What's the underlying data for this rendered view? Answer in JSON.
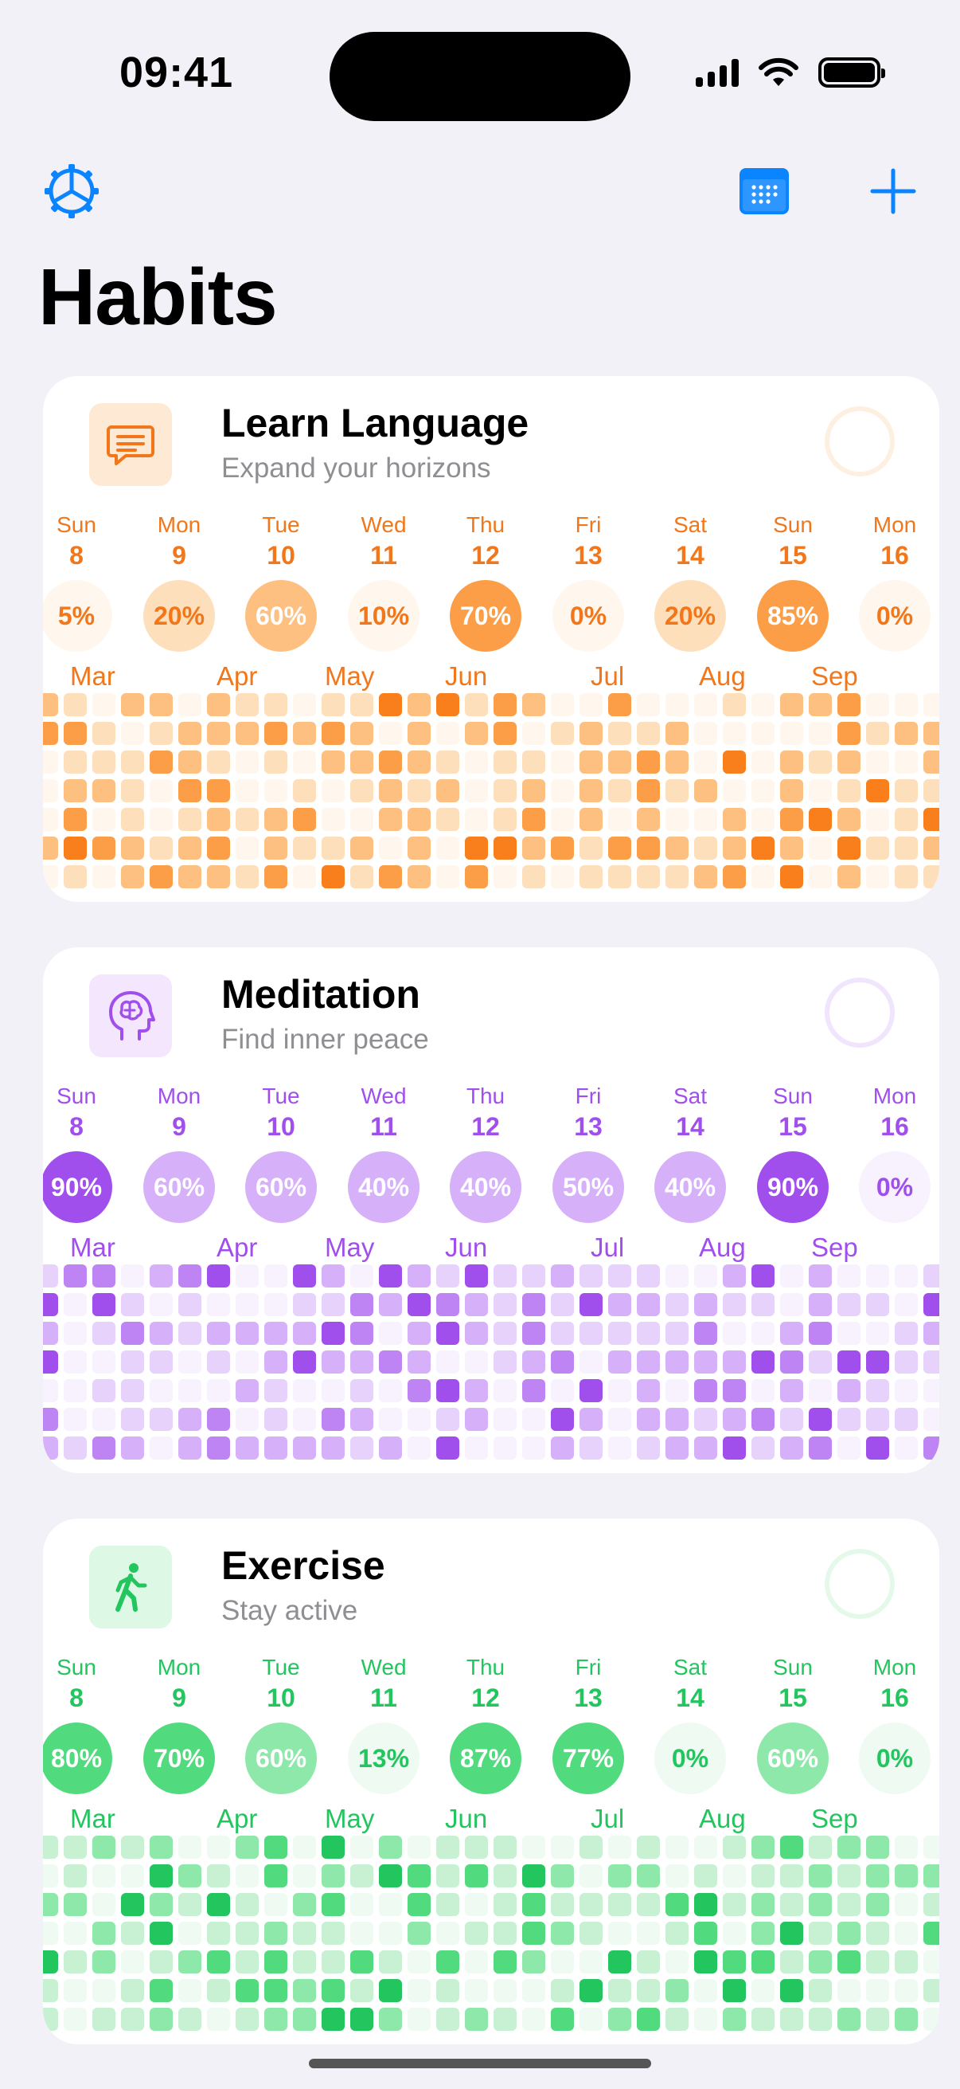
{
  "status_bar": {
    "time": "09:41"
  },
  "nav": {
    "settings_icon": "gear-icon",
    "calendar_icon": "calendar-icon",
    "add_icon": "plus-icon"
  },
  "page_title": "Habits",
  "habits": [
    {
      "id": "language",
      "title": "Learn Language",
      "subtitle": "Expand your horizons",
      "icon": "speech-bubble-icon",
      "palette": [
        "#FFF7EE",
        "#FEDFBC",
        "#FDC080",
        "#FB9E47",
        "#F97E1C"
      ],
      "days": [
        {
          "name": "Sun",
          "num": "8",
          "pct": "5%",
          "level": 0
        },
        {
          "name": "Mon",
          "num": "9",
          "pct": "20%",
          "level": 1
        },
        {
          "name": "Tue",
          "num": "10",
          "pct": "60%",
          "level": 2
        },
        {
          "name": "Wed",
          "num": "11",
          "pct": "10%",
          "level": 0
        },
        {
          "name": "Thu",
          "num": "12",
          "pct": "70%",
          "level": 3
        },
        {
          "name": "Fri",
          "num": "13",
          "pct": "0%",
          "level": 0
        },
        {
          "name": "Sat",
          "num": "14",
          "pct": "20%",
          "level": 1
        },
        {
          "name": "Sun",
          "num": "15",
          "pct": "85%",
          "level": 3
        },
        {
          "name": "Mon",
          "num": "16",
          "pct": "0%",
          "level": 0
        }
      ],
      "months": [
        "Mar",
        "Apr",
        "May",
        "Jun",
        "Jul",
        "Aug",
        "Sep"
      ],
      "seed": 11
    },
    {
      "id": "meditation",
      "title": "Meditation",
      "subtitle": "Find inner peace",
      "icon": "brain-head-icon",
      "palette": [
        "#F8F1FE",
        "#E6D2FB",
        "#D6B1F9",
        "#BF84F3",
        "#A14FEC"
      ],
      "days": [
        {
          "name": "Sun",
          "num": "8",
          "pct": "90%",
          "level": 4
        },
        {
          "name": "Mon",
          "num": "9",
          "pct": "60%",
          "level": 2
        },
        {
          "name": "Tue",
          "num": "10",
          "pct": "60%",
          "level": 2
        },
        {
          "name": "Wed",
          "num": "11",
          "pct": "40%",
          "level": 2
        },
        {
          "name": "Thu",
          "num": "12",
          "pct": "40%",
          "level": 2
        },
        {
          "name": "Fri",
          "num": "13",
          "pct": "50%",
          "level": 2
        },
        {
          "name": "Sat",
          "num": "14",
          "pct": "40%",
          "level": 2
        },
        {
          "name": "Sun",
          "num": "15",
          "pct": "90%",
          "level": 4
        },
        {
          "name": "Mon",
          "num": "16",
          "pct": "0%",
          "level": 0
        }
      ],
      "months": [
        "Mar",
        "Apr",
        "May",
        "Jun",
        "Jul",
        "Aug",
        "Sep"
      ],
      "seed": 29
    },
    {
      "id": "exercise",
      "title": "Exercise",
      "subtitle": "Stay active",
      "icon": "walking-person-icon",
      "palette": [
        "#EFFBF2",
        "#C8F1D4",
        "#8EE8AA",
        "#52DA7E",
        "#22C55E"
      ],
      "days": [
        {
          "name": "Sun",
          "num": "8",
          "pct": "80%",
          "level": 3
        },
        {
          "name": "Mon",
          "num": "9",
          "pct": "70%",
          "level": 3
        },
        {
          "name": "Tue",
          "num": "10",
          "pct": "60%",
          "level": 2
        },
        {
          "name": "Wed",
          "num": "11",
          "pct": "13%",
          "level": 0
        },
        {
          "name": "Thu",
          "num": "12",
          "pct": "87%",
          "level": 3
        },
        {
          "name": "Fri",
          "num": "13",
          "pct": "77%",
          "level": 3
        },
        {
          "name": "Sat",
          "num": "14",
          "pct": "0%",
          "level": 0
        },
        {
          "name": "Sun",
          "num": "15",
          "pct": "60%",
          "level": 2
        },
        {
          "name": "Mon",
          "num": "16",
          "pct": "0%",
          "level": 0
        }
      ],
      "months": [
        "Mar",
        "Apr",
        "May",
        "Jun",
        "Jul",
        "Aug",
        "Sep"
      ],
      "seed": 53
    }
  ],
  "colors": {
    "accent_blue": "#0A84FF",
    "orange_text": "#F1771A",
    "purple_text": "#A14FEC",
    "green_text": "#22C55E"
  }
}
